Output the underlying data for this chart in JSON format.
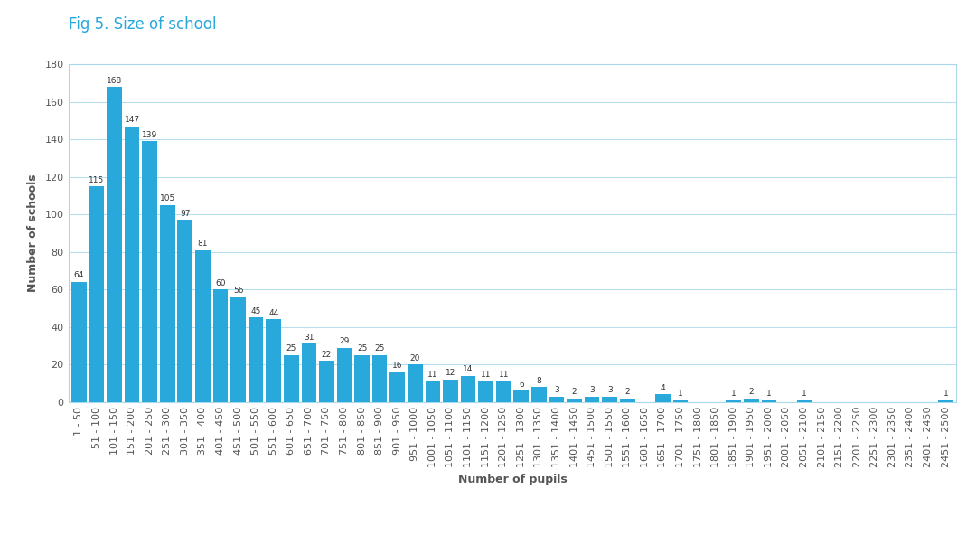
{
  "title": "Fig 5. Size of school",
  "xlabel": "Number of pupils",
  "ylabel": "Number of schools",
  "bar_color": "#29a8dc",
  "background_color": "#ffffff",
  "grid_color": "#b8dff0",
  "spine_color": "#a8d8ea",
  "title_color": "#29a8dc",
  "axis_label_color": "#555555",
  "tick_label_color": "#555555",
  "categories": [
    "1 - 50",
    "51 - 100",
    "101 - 150",
    "151 - 200",
    "201 - 250",
    "251 - 300",
    "301 - 350",
    "351 - 400",
    "401 - 450",
    "451 - 500",
    "501 - 550",
    "551 - 600",
    "601 - 650",
    "651 - 700",
    "701 - 750",
    "751 - 800",
    "801 - 850",
    "851 - 900",
    "901 - 950",
    "951 - 1000",
    "1001 - 1050",
    "1051 - 1100",
    "1101 - 1150",
    "1151 - 1200",
    "1201 - 1250",
    "1251 - 1300",
    "1301 - 1350",
    "1351 - 1400",
    "1401 - 1450",
    "1451 - 1500",
    "1501 - 1550",
    "1551 - 1600",
    "1601 - 1650",
    "1651 - 1700",
    "1701 - 1750",
    "1751 - 1800",
    "1801 - 1850",
    "1851 - 1900",
    "1901 - 1950",
    "1951 - 2000",
    "2001 - 2050",
    "2051 - 2100",
    "2101 - 2150",
    "2151 - 2200",
    "2201 - 2250",
    "2251 - 2300",
    "2301 - 2350",
    "2351 - 2400",
    "2401 - 2450",
    "2451 - 2500"
  ],
  "values": [
    64,
    115,
    168,
    147,
    139,
    105,
    97,
    81,
    60,
    56,
    45,
    44,
    25,
    31,
    22,
    29,
    25,
    25,
    16,
    20,
    11,
    12,
    14,
    11,
    11,
    6,
    8,
    3,
    2,
    3,
    3,
    2,
    0,
    4,
    1,
    0,
    0,
    1,
    2,
    1,
    0,
    1,
    0,
    0,
    0,
    0,
    0,
    0,
    0,
    1
  ],
  "ylim": [
    0,
    180
  ],
  "yticks": [
    0,
    20,
    40,
    60,
    80,
    100,
    120,
    140,
    160,
    180
  ],
  "tick_fontsize": 8,
  "value_fontsize": 6.5,
  "axis_label_fontsize": 9,
  "title_fontsize": 12
}
